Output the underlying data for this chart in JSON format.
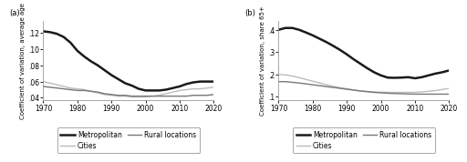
{
  "panel_a": {
    "title": "(a)",
    "ylabel": "Coefficient of variation, average age",
    "xlim": [
      1970,
      2020
    ],
    "ylim": [
      0.037,
      0.135
    ],
    "yticks": [
      0.04,
      0.06,
      0.08,
      0.1,
      0.12
    ],
    "ytick_labels": [
      ".04",
      ".06",
      ".08",
      ".10",
      ".12"
    ],
    "xticks": [
      1970,
      1980,
      1990,
      2000,
      2010,
      2020
    ],
    "metropolitan": {
      "x": [
        1970,
        1972,
        1974,
        1976,
        1978,
        1980,
        1982,
        1984,
        1986,
        1988,
        1990,
        1992,
        1994,
        1996,
        1998,
        2000,
        2002,
        2004,
        2006,
        2008,
        2010,
        2012,
        2014,
        2016,
        2018,
        2020
      ],
      "y": [
        0.122,
        0.121,
        0.119,
        0.115,
        0.108,
        0.098,
        0.091,
        0.085,
        0.08,
        0.074,
        0.068,
        0.063,
        0.058,
        0.055,
        0.051,
        0.049,
        0.049,
        0.049,
        0.05,
        0.052,
        0.054,
        0.057,
        0.059,
        0.06,
        0.06,
        0.06
      ],
      "color": "#1a1a1a",
      "linewidth": 1.8
    },
    "cities": {
      "x": [
        1970,
        1972,
        1974,
        1976,
        1978,
        1980,
        1982,
        1984,
        1986,
        1988,
        1990,
        1992,
        1994,
        1996,
        1998,
        2000,
        2002,
        2004,
        2006,
        2008,
        2010,
        2012,
        2014,
        2016,
        2018,
        2020
      ],
      "y": [
        0.06,
        0.058,
        0.056,
        0.054,
        0.052,
        0.051,
        0.05,
        0.048,
        0.046,
        0.044,
        0.043,
        0.042,
        0.042,
        0.041,
        0.041,
        0.041,
        0.042,
        0.043,
        0.045,
        0.047,
        0.049,
        0.05,
        0.051,
        0.051,
        0.052,
        0.053
      ],
      "color": "#bbbbbb",
      "linewidth": 1.0
    },
    "rural": {
      "x": [
        1970,
        1972,
        1974,
        1976,
        1978,
        1980,
        1982,
        1984,
        1986,
        1988,
        1990,
        1992,
        1994,
        1996,
        1998,
        2000,
        2002,
        2004,
        2006,
        2008,
        2010,
        2012,
        2014,
        2016,
        2018,
        2020
      ],
      "y": [
        0.054,
        0.053,
        0.052,
        0.051,
        0.05,
        0.049,
        0.049,
        0.048,
        0.047,
        0.045,
        0.044,
        0.043,
        0.043,
        0.042,
        0.042,
        0.042,
        0.042,
        0.042,
        0.042,
        0.042,
        0.042,
        0.042,
        0.043,
        0.043,
        0.043,
        0.044
      ],
      "color": "#777777",
      "linewidth": 1.0
    }
  },
  "panel_b": {
    "title": "(b)",
    "ylabel": "Coefficient of variation, share 65+",
    "xlim": [
      1970,
      2020
    ],
    "ylim": [
      0.085,
      0.44
    ],
    "yticks": [
      0.1,
      0.2,
      0.3,
      0.4
    ],
    "ytick_labels": [
      ".1",
      ".2",
      ".3",
      ".4"
    ],
    "xticks": [
      1970,
      1980,
      1990,
      2000,
      2010,
      2020
    ],
    "metropolitan": {
      "x": [
        1970,
        1972,
        1974,
        1976,
        1978,
        1980,
        1982,
        1984,
        1986,
        1988,
        1990,
        1992,
        1994,
        1996,
        1998,
        2000,
        2002,
        2004,
        2006,
        2008,
        2010,
        2012,
        2014,
        2016,
        2018,
        2020
      ],
      "y": [
        0.4,
        0.408,
        0.408,
        0.4,
        0.388,
        0.375,
        0.36,
        0.345,
        0.328,
        0.31,
        0.29,
        0.268,
        0.248,
        0.228,
        0.21,
        0.196,
        0.186,
        0.185,
        0.186,
        0.188,
        0.183,
        0.188,
        0.196,
        0.204,
        0.21,
        0.218
      ],
      "color": "#1a1a1a",
      "linewidth": 1.8
    },
    "cities": {
      "x": [
        1970,
        1972,
        1974,
        1976,
        1978,
        1980,
        1982,
        1984,
        1986,
        1988,
        1990,
        1992,
        1994,
        1996,
        1998,
        2000,
        2002,
        2004,
        2006,
        2008,
        2010,
        2012,
        2014,
        2016,
        2018,
        2020
      ],
      "y": [
        0.2,
        0.198,
        0.193,
        0.186,
        0.178,
        0.17,
        0.162,
        0.154,
        0.147,
        0.141,
        0.136,
        0.131,
        0.127,
        0.124,
        0.122,
        0.121,
        0.12,
        0.12,
        0.12,
        0.12,
        0.12,
        0.122,
        0.125,
        0.128,
        0.133,
        0.138
      ],
      "color": "#bbbbbb",
      "linewidth": 1.0
    },
    "rural": {
      "x": [
        1970,
        1972,
        1974,
        1976,
        1978,
        1980,
        1982,
        1984,
        1986,
        1988,
        1990,
        1992,
        1994,
        1996,
        1998,
        2000,
        2002,
        2004,
        2006,
        2008,
        2010,
        2012,
        2014,
        2016,
        2018,
        2020
      ],
      "y": [
        0.168,
        0.168,
        0.165,
        0.162,
        0.158,
        0.154,
        0.15,
        0.146,
        0.142,
        0.138,
        0.134,
        0.13,
        0.126,
        0.123,
        0.12,
        0.118,
        0.116,
        0.115,
        0.114,
        0.113,
        0.112,
        0.112,
        0.112,
        0.112,
        0.112,
        0.112
      ],
      "color": "#777777",
      "linewidth": 1.0
    }
  },
  "legend": {
    "metropolitan_label": "Metropolitan",
    "cities_label": "Cities",
    "rural_label": "Rural locations"
  },
  "background_color": "#ffffff",
  "font_size": 5.5
}
